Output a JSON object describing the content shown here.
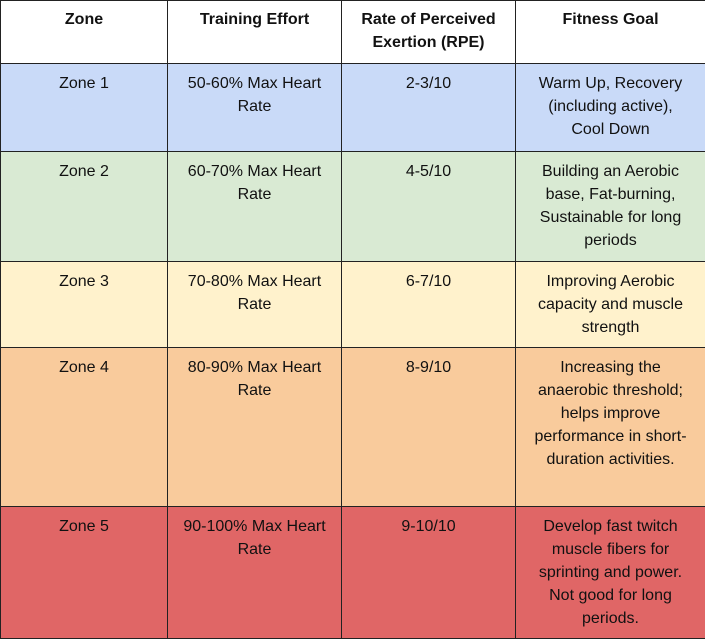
{
  "table": {
    "header": [
      "Zone",
      "Training Effort",
      "Rate of Perceived Exertion (RPE)",
      "Fitness Goal"
    ],
    "row_colors": [
      "#c9daf8",
      "#d9ead3",
      "#fff2cc",
      "#f9cb9c",
      "#e06666"
    ],
    "rows": [
      [
        "Zone 1",
        "50-60% Max Heart Rate",
        "2-3/10",
        "Warm Up, Recovery (including active), Cool Down"
      ],
      [
        "Zone 2",
        "60-70% Max Heart Rate",
        "4-5/10",
        "Building an Aerobic base, Fat-burning, Sustainable for long periods"
      ],
      [
        "Zone 3",
        "70-80% Max Heart Rate",
        "6-7/10",
        "Improving Aerobic capacity and muscle strength"
      ],
      [
        "Zone 4",
        "80-90% Max Heart Rate",
        "8-9/10",
        "Increasing the anaerobic threshold; helps improve performance in short-duration activities."
      ],
      [
        "Zone 5",
        "90-100% Max Heart Rate",
        "9-10/10",
        "Develop fast twitch muscle fibers for sprinting and power. Not good for long periods."
      ]
    ]
  }
}
